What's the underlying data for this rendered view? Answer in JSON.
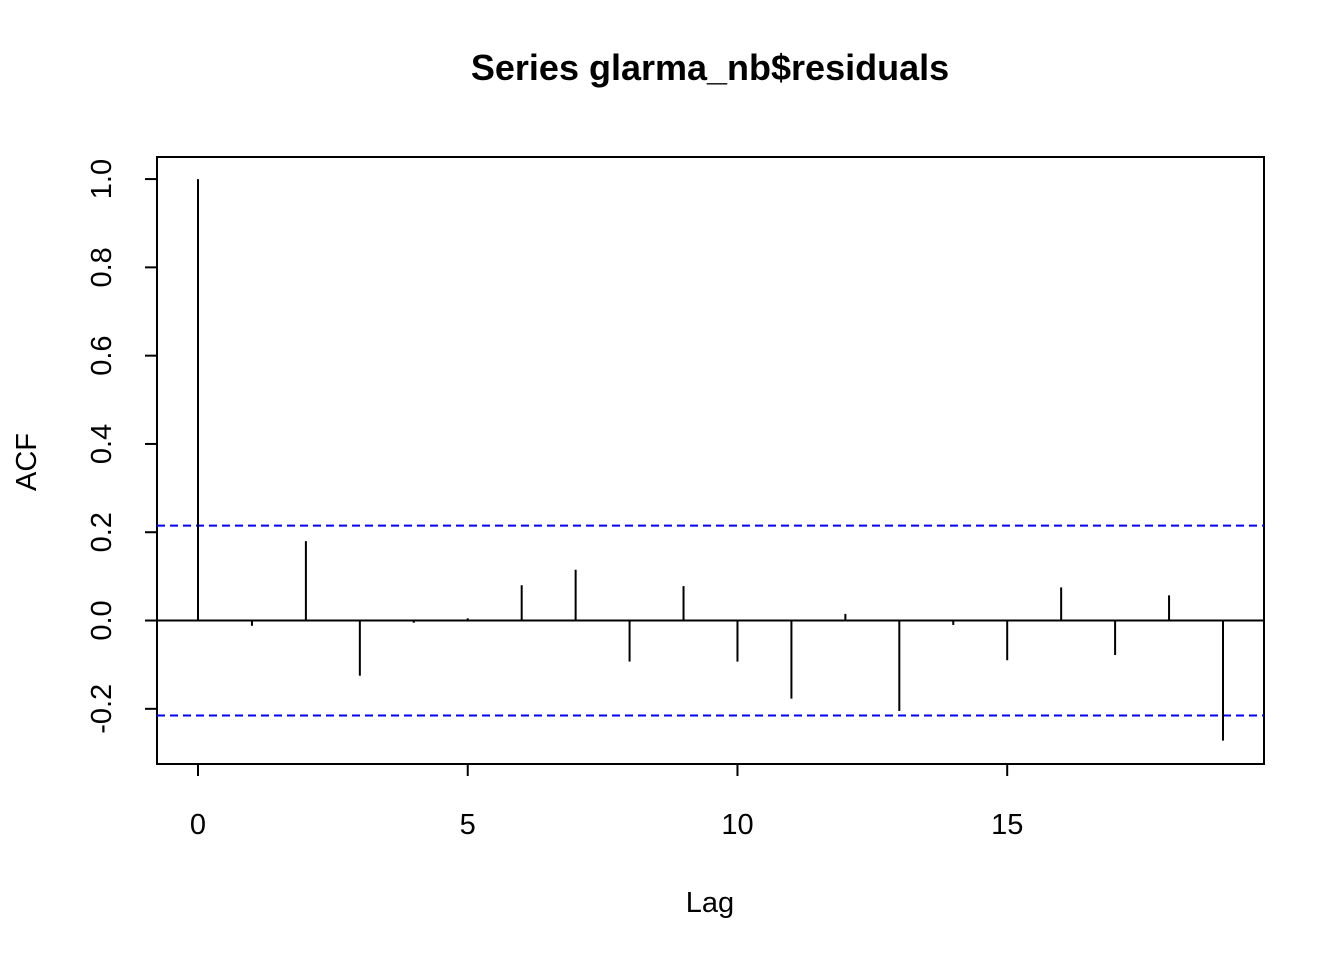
{
  "chart_data": {
    "type": "bar",
    "title": "Series  glarma_nb$residuals",
    "xlabel": "Lag",
    "ylabel": "ACF",
    "x": [
      0,
      1,
      2,
      3,
      4,
      5,
      6,
      7,
      8,
      9,
      10,
      11,
      12,
      13,
      14,
      15,
      16,
      17,
      18,
      19
    ],
    "values": [
      1.0,
      -0.012,
      0.18,
      -0.125,
      -0.005,
      0.005,
      0.08,
      0.115,
      -0.093,
      0.078,
      -0.093,
      -0.177,
      0.015,
      -0.205,
      -0.01,
      -0.09,
      0.075,
      -0.078,
      0.057,
      -0.272
    ],
    "confidence_bound": 0.215,
    "xlim": [
      -0.76,
      19.76
    ],
    "ylim": [
      -0.325,
      1.05
    ],
    "xticks": [
      "0",
      "5",
      "10",
      "15"
    ],
    "xtick_values": [
      0,
      5,
      10,
      15
    ],
    "yticks": [
      "-0.2",
      "0.0",
      "0.2",
      "0.4",
      "0.6",
      "0.8",
      "1.0"
    ],
    "ytick_values": [
      -0.2,
      0.0,
      0.2,
      0.4,
      0.6,
      0.8,
      1.0
    ],
    "grid": false,
    "colors": {
      "bars": "#000000",
      "confidence": "#0000ff",
      "zero_line": "#000000"
    }
  }
}
